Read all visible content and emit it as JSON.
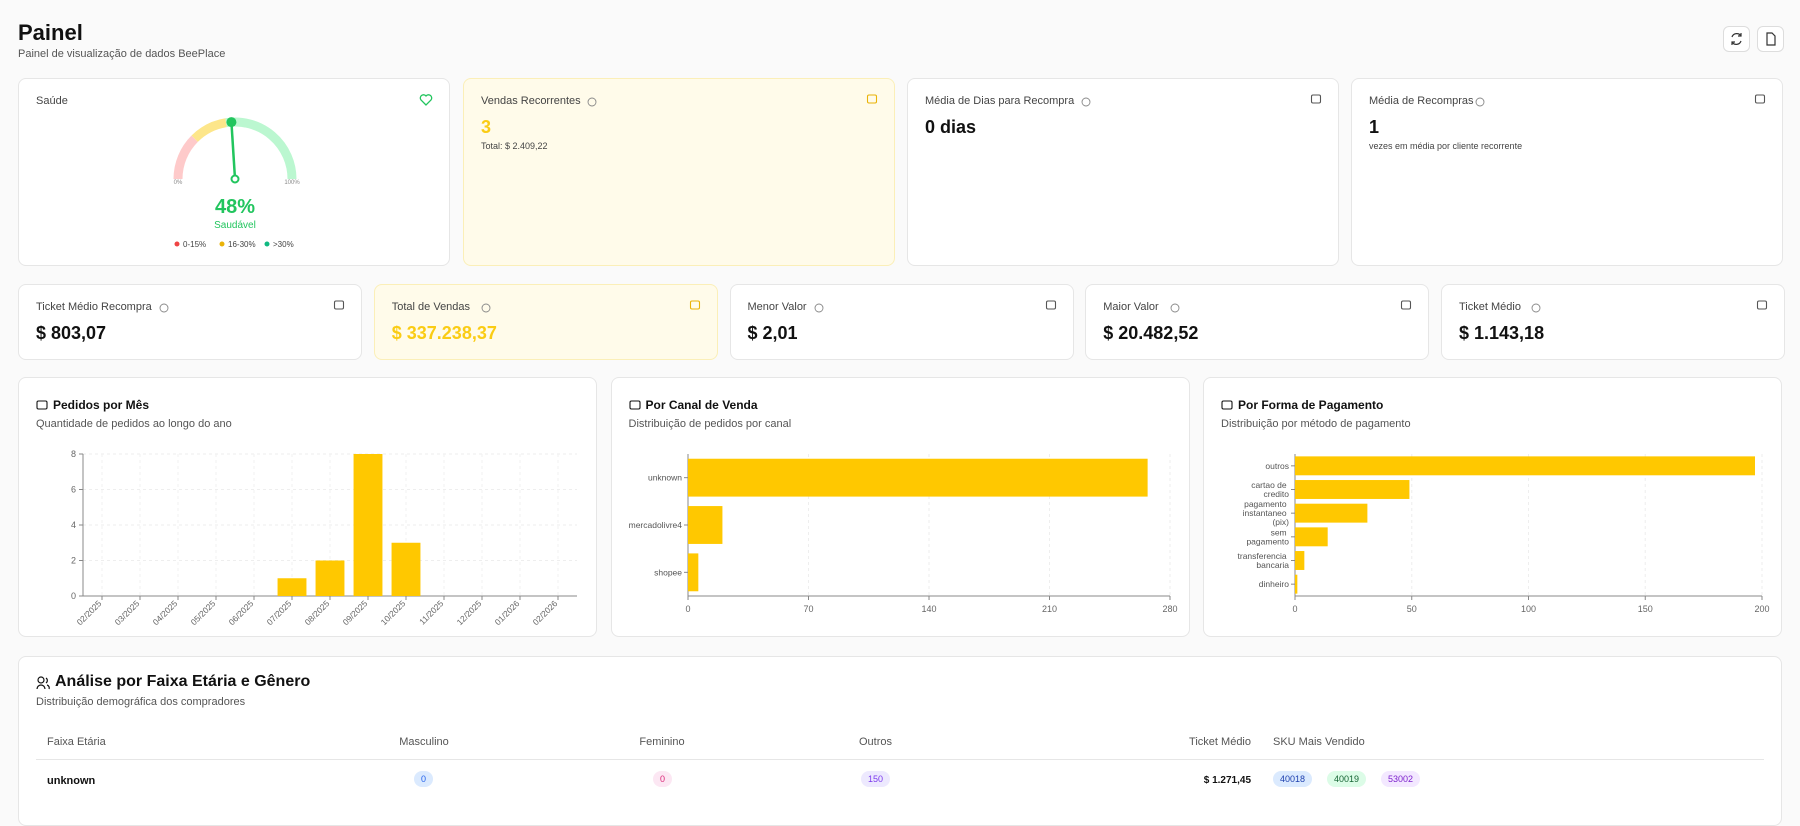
{
  "header": {
    "title": "Painel",
    "subtitle": "Painel de visualização de dados BeePlace"
  },
  "health": {
    "label": "Saúde",
    "gauge": {
      "value": 48,
      "label": "48%",
      "ticks": [
        {
          "value": 0,
          "label": "0%"
        },
        {
          "value": 100,
          "label": "100%"
        }
      ]
    },
    "status": "Saudável",
    "legend": [
      "0-15%",
      "16-30%",
      ">30%"
    ]
  },
  "kpis": [
    {
      "label": "Vendas Recorrentes",
      "value": "3",
      "note": "Total: $ 2.409,22"
    },
    {
      "label": "Média de Dias para Recompra",
      "value": "0 dias"
    },
    {
      "label": "Média de Recompras",
      "value": "1",
      "note": "vezes em média por cliente recorrente"
    }
  ],
  "metrics": [
    {
      "label": "Ticket Médio Recompra",
      "value": "$ 803,07"
    },
    {
      "label": "Total de Vendas",
      "value": "$ 337.238,37"
    },
    {
      "label": "Menor Valor",
      "value": "$ 2,01"
    },
    {
      "label": "Maior Valor",
      "value": "$ 20.482,52"
    },
    {
      "label": "Ticket Médio",
      "value": "$ 1.143,18"
    }
  ],
  "chart_data": [
    {
      "type": "bar",
      "orientation": "vertical",
      "title": "Pedidos por Mês",
      "subtitle": "Quantidade de pedidos ao longo do ano",
      "categories": [
        "02/2025",
        "03/2025",
        "04/2025",
        "05/2025",
        "06/2025",
        "07/2025",
        "08/2025",
        "09/2025",
        "10/2025",
        "11/2025",
        "12/2025",
        "01/2026",
        "02/2026"
      ],
      "values": [
        0,
        0,
        0,
        0,
        0,
        1,
        2,
        8,
        3,
        0,
        0,
        0,
        0
      ],
      "color": "#ffc800",
      "ylim": [
        0,
        8
      ],
      "yticks": [
        0,
        2,
        4,
        6,
        8
      ],
      "grid": true
    },
    {
      "type": "bar",
      "orientation": "horizontal",
      "title": "Por Canal de Venda",
      "subtitle": "Distribuição de pedidos por canal",
      "categories": [
        "unknown",
        "mercadolivre4",
        "shopee"
      ],
      "values": [
        267,
        20,
        6
      ],
      "color": "#ffc800",
      "xlim": [
        0,
        280
      ],
      "xticks": [
        0,
        70,
        140,
        210,
        280
      ],
      "grid": true
    },
    {
      "type": "bar",
      "orientation": "horizontal",
      "title": "Por Forma de Pagamento",
      "subtitle": "Distribuição por método de pagamento",
      "categories": [
        "outros",
        "cartao de credito",
        "pagamento instantaneo (pix)",
        "sem pagamento",
        "transferencia bancaria",
        "dinheiro"
      ],
      "values": [
        197,
        49,
        31,
        14,
        4,
        1
      ],
      "color": "#ffc800",
      "xlim": [
        0,
        200
      ],
      "xticks": [
        0,
        50,
        100,
        150,
        200
      ],
      "grid": true
    }
  ],
  "table": {
    "title": "Análise por Faixa Etária e Gênero",
    "subtitle": "Distribuição demográfica dos compradores",
    "columns": [
      "Faixa Etária",
      "Masculino",
      "Feminino",
      "Outros",
      "Ticket Médio",
      "SKU Mais Vendido"
    ],
    "rows": [
      [
        "unknown",
        0,
        0,
        150,
        "$ 1.271,45",
        [
          "40018",
          "40019",
          "53002"
        ]
      ]
    ]
  }
}
